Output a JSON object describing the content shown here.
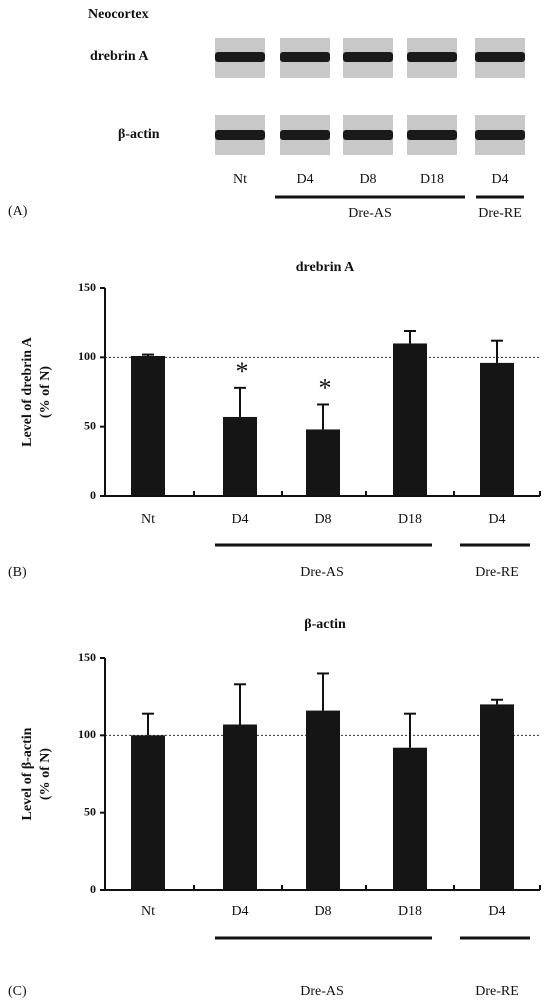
{
  "blot": {
    "title": "Neocortex",
    "rows": [
      "drebrin A",
      "β-actin"
    ],
    "lanes": [
      "Nt",
      "D4",
      "D8",
      "D18",
      "D4"
    ],
    "groups": [
      "Dre-AS",
      "Dre-RE"
    ],
    "panel": "(A)"
  },
  "chart_data": [
    {
      "type": "bar",
      "panel": "(B)",
      "title": "drebrin A",
      "ylabel": "Level of drebrin A",
      "ylabel_sub": "(% of N)",
      "categories": [
        "Nt",
        "D4",
        "D8",
        "D18",
        "D4"
      ],
      "values": [
        101,
        57,
        48,
        110,
        96
      ],
      "errors": [
        1,
        21,
        18,
        9,
        16
      ],
      "significance": [
        null,
        "*",
        "*",
        null,
        null
      ],
      "groups": [
        "Dre-AS",
        "Dre-RE"
      ],
      "reference_line": 100,
      "color": "#151515",
      "ylim": [
        0,
        150
      ],
      "yticks": [
        0,
        50,
        100,
        150
      ]
    },
    {
      "type": "bar",
      "panel": "(C)",
      "title": "β-actin",
      "ylabel": "Level of β-actin",
      "ylabel_sub": "(% of N)",
      "categories": [
        "Nt",
        "D4",
        "D8",
        "D18",
        "D4"
      ],
      "values": [
        100,
        107,
        116,
        92,
        120
      ],
      "errors": [
        14,
        26,
        24,
        22,
        3
      ],
      "groups": [
        "Dre-AS",
        "Dre-RE"
      ],
      "reference_line": 100,
      "color": "#151515",
      "ylim": [
        0,
        150
      ],
      "yticks": [
        0,
        50,
        100,
        150
      ]
    }
  ]
}
